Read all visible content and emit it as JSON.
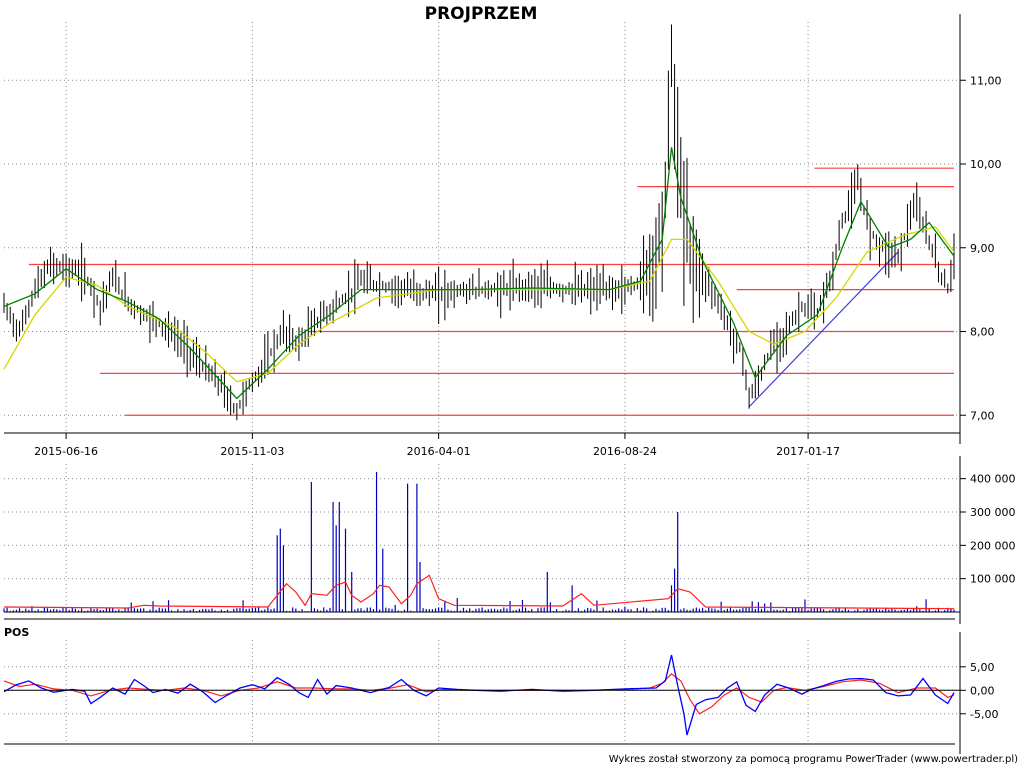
{
  "title": "PROJPRZEM",
  "footer": "Wykres został stworzony za pomocą programu PowerTrader (www.powertrader.pl)",
  "chart_data": [
    {
      "type": "candlestick",
      "name": "price",
      "x_tick_labels": [
        "2015-06-16",
        "2015-11-03",
        "2016-04-01",
        "2016-08-24",
        "2017-01-17"
      ],
      "y_tick_labels": [
        "7,00",
        "8,00",
        "9,00",
        "10,00",
        "11,00"
      ],
      "y_tick_values": [
        7,
        8,
        9,
        10,
        11
      ],
      "ylim": [
        6.8,
        11.6
      ],
      "grid": true,
      "colors": {
        "price": "#000000",
        "ma_short": "#008000",
        "ma_long": "#d6d600",
        "levels": "#ff4040",
        "trendline": "#4040d0"
      },
      "close_path": [
        [
          0,
          8.3
        ],
        [
          5,
          8.0
        ],
        [
          10,
          8.5
        ],
        [
          15,
          8.8
        ],
        [
          20,
          8.75
        ],
        [
          25,
          8.7
        ],
        [
          28,
          8.55
        ],
        [
          31,
          8.3
        ],
        [
          35,
          8.65
        ],
        [
          40,
          8.35
        ],
        [
          45,
          8.2
        ],
        [
          50,
          8.1
        ],
        [
          55,
          7.95
        ],
        [
          60,
          7.75
        ],
        [
          65,
          7.55
        ],
        [
          70,
          7.35
        ],
        [
          73,
          7.15
        ],
        [
          75,
          7.05
        ],
        [
          78,
          7.3
        ],
        [
          82,
          7.5
        ],
        [
          86,
          7.75
        ],
        [
          90,
          8.0
        ],
        [
          95,
          7.85
        ],
        [
          100,
          8.1
        ],
        [
          105,
          8.25
        ],
        [
          110,
          8.4
        ],
        [
          115,
          8.6
        ],
        [
          120,
          8.55
        ],
        [
          130,
          8.5
        ],
        [
          140,
          8.45
        ],
        [
          150,
          8.5
        ],
        [
          160,
          8.5
        ],
        [
          170,
          8.55
        ],
        [
          180,
          8.5
        ],
        [
          190,
          8.5
        ],
        [
          200,
          8.5
        ],
        [
          205,
          8.6
        ],
        [
          210,
          8.9
        ],
        [
          213,
          9.6
        ],
        [
          215,
          11.3
        ],
        [
          217,
          10.1
        ],
        [
          219,
          9.3
        ],
        [
          223,
          8.8
        ],
        [
          228,
          8.5
        ],
        [
          233,
          8.1
        ],
        [
          238,
          7.7
        ],
        [
          240,
          7.2
        ],
        [
          243,
          7.4
        ],
        [
          247,
          7.8
        ],
        [
          252,
          8.0
        ],
        [
          257,
          8.3
        ],
        [
          262,
          8.2
        ],
        [
          266,
          8.6
        ],
        [
          270,
          9.3
        ],
        [
          275,
          9.75
        ],
        [
          279,
          9.2
        ],
        [
          283,
          9.0
        ],
        [
          288,
          8.9
        ],
        [
          293,
          9.5
        ],
        [
          297,
          9.2
        ],
        [
          301,
          8.75
        ],
        [
          304,
          8.5
        ],
        [
          306,
          8.95
        ]
      ],
      "ma_short": [
        [
          0,
          8.3
        ],
        [
          10,
          8.45
        ],
        [
          20,
          8.75
        ],
        [
          30,
          8.5
        ],
        [
          40,
          8.35
        ],
        [
          50,
          8.15
        ],
        [
          60,
          7.8
        ],
        [
          70,
          7.4
        ],
        [
          75,
          7.2
        ],
        [
          85,
          7.55
        ],
        [
          95,
          7.95
        ],
        [
          105,
          8.2
        ],
        [
          115,
          8.5
        ],
        [
          130,
          8.5
        ],
        [
          150,
          8.5
        ],
        [
          170,
          8.52
        ],
        [
          195,
          8.5
        ],
        [
          205,
          8.6
        ],
        [
          212,
          9.1
        ],
        [
          215,
          10.2
        ],
        [
          218,
          9.6
        ],
        [
          225,
          8.85
        ],
        [
          235,
          8.1
        ],
        [
          242,
          7.45
        ],
        [
          252,
          7.95
        ],
        [
          262,
          8.2
        ],
        [
          270,
          9.0
        ],
        [
          276,
          9.55
        ],
        [
          285,
          9.0
        ],
        [
          292,
          9.1
        ],
        [
          298,
          9.3
        ],
        [
          306,
          8.9
        ]
      ],
      "ma_long": [
        [
          0,
          7.55
        ],
        [
          10,
          8.2
        ],
        [
          20,
          8.65
        ],
        [
          30,
          8.55
        ],
        [
          40,
          8.3
        ],
        [
          55,
          8.05
        ],
        [
          65,
          7.75
        ],
        [
          75,
          7.4
        ],
        [
          85,
          7.5
        ],
        [
          95,
          7.85
        ],
        [
          105,
          8.1
        ],
        [
          120,
          8.4
        ],
        [
          140,
          8.5
        ],
        [
          170,
          8.5
        ],
        [
          195,
          8.5
        ],
        [
          208,
          8.6
        ],
        [
          215,
          9.1
        ],
        [
          220,
          9.1
        ],
        [
          230,
          8.6
        ],
        [
          240,
          8.0
        ],
        [
          248,
          7.85
        ],
        [
          258,
          8.0
        ],
        [
          268,
          8.4
        ],
        [
          278,
          8.95
        ],
        [
          290,
          9.15
        ],
        [
          300,
          9.25
        ],
        [
          306,
          8.95
        ]
      ],
      "horizontal_levels": [
        {
          "value": 9.95,
          "from": 261,
          "to": 306
        },
        {
          "value": 9.73,
          "from": 204,
          "to": 306
        },
        {
          "value": 8.8,
          "from": 8,
          "to": 306
        },
        {
          "value": 8.5,
          "from": 236,
          "to": 306
        },
        {
          "value": 8.0,
          "from": 98,
          "to": 306
        },
        {
          "value": 7.5,
          "from": 31,
          "to": 306
        },
        {
          "value": 7.0,
          "from": 39,
          "to": 306
        }
      ],
      "trendline": [
        [
          240,
          7.1
        ],
        [
          288,
          8.95
        ]
      ]
    },
    {
      "type": "bar",
      "name": "volume",
      "y_tick_labels": [
        "100 000",
        "200 000",
        "300 000",
        "400 000"
      ],
      "y_tick_values": [
        100000,
        200000,
        300000,
        400000
      ],
      "ylim": [
        0,
        420000
      ],
      "colors": {
        "volume": "#0000c0",
        "volume_ma": "#ff2020"
      },
      "spikes": [
        [
          88,
          230000
        ],
        [
          89,
          250000
        ],
        [
          90,
          200000
        ],
        [
          99,
          390000
        ],
        [
          106,
          330000
        ],
        [
          107,
          260000
        ],
        [
          108,
          330000
        ],
        [
          110,
          250000
        ],
        [
          112,
          120000
        ],
        [
          120,
          420000
        ],
        [
          122,
          190000
        ],
        [
          130,
          385000
        ],
        [
          133,
          385000
        ],
        [
          134,
          150000
        ],
        [
          175,
          120000
        ],
        [
          183,
          80000
        ],
        [
          217,
          300000
        ],
        [
          216,
          130000
        ],
        [
          215,
          80000
        ]
      ],
      "volume_ma": [
        [
          0,
          15000
        ],
        [
          40,
          12000
        ],
        [
          45,
          20000
        ],
        [
          50,
          18000
        ],
        [
          85,
          15000
        ],
        [
          88,
          50000
        ],
        [
          91,
          85000
        ],
        [
          94,
          60000
        ],
        [
          97,
          20000
        ],
        [
          99,
          55000
        ],
        [
          104,
          50000
        ],
        [
          107,
          80000
        ],
        [
          110,
          90000
        ],
        [
          112,
          50000
        ],
        [
          115,
          30000
        ],
        [
          119,
          55000
        ],
        [
          121,
          80000
        ],
        [
          124,
          75000
        ],
        [
          128,
          25000
        ],
        [
          131,
          50000
        ],
        [
          133,
          85000
        ],
        [
          137,
          110000
        ],
        [
          140,
          40000
        ],
        [
          145,
          20000
        ],
        [
          180,
          18000
        ],
        [
          186,
          55000
        ],
        [
          190,
          20000
        ],
        [
          214,
          40000
        ],
        [
          217,
          70000
        ],
        [
          221,
          60000
        ],
        [
          226,
          15000
        ],
        [
          306,
          10000
        ]
      ]
    },
    {
      "type": "line",
      "name": "oscillator",
      "title": "POS",
      "y_tick_labels": [
        "5,00",
        "0,00",
        "-5,00"
      ],
      "y_tick_values": [
        5,
        0,
        -5
      ],
      "ylim": [
        -11,
        9
      ],
      "colors": {
        "line1": "#0000ff",
        "line2": "#ff2020",
        "zero": "#000000"
      },
      "series": [
        {
          "values": [
            [
              0,
              -0.3
            ],
            [
              4,
              1.2
            ],
            [
              8,
              2.0
            ],
            [
              12,
              0.5
            ],
            [
              16,
              -0.4
            ],
            [
              22,
              0.2
            ],
            [
              26,
              -0.2
            ],
            [
              28,
              -2.8
            ],
            [
              31,
              -1.5
            ],
            [
              35,
              0.5
            ],
            [
              39,
              -0.8
            ],
            [
              42,
              2.3
            ],
            [
              45,
              1.0
            ],
            [
              48,
              -0.5
            ],
            [
              52,
              0.2
            ],
            [
              56,
              -0.6
            ],
            [
              60,
              1.3
            ],
            [
              64,
              -0.3
            ],
            [
              68,
              -2.6
            ],
            [
              72,
              -1.0
            ],
            [
              76,
              0.5
            ],
            [
              80,
              1.2
            ],
            [
              84,
              0.3
            ],
            [
              88,
              2.7
            ],
            [
              92,
              1.2
            ],
            [
              95,
              -0.5
            ],
            [
              98,
              -1.5
            ],
            [
              101,
              2.3
            ],
            [
              104,
              -0.8
            ],
            [
              107,
              1.0
            ],
            [
              112,
              0.5
            ],
            [
              118,
              -0.5
            ],
            [
              124,
              0.6
            ],
            [
              128,
              2.3
            ],
            [
              132,
              0.0
            ],
            [
              136,
              -1.2
            ],
            [
              140,
              0.5
            ],
            [
              146,
              0.2
            ],
            [
              152,
              0.0
            ],
            [
              160,
              -0.2
            ],
            [
              170,
              0.2
            ],
            [
              180,
              -0.2
            ],
            [
              190,
              0.0
            ],
            [
              200,
              0.3
            ],
            [
              210,
              0.5
            ],
            [
              213,
              2.0
            ],
            [
              215,
              7.5
            ],
            [
              217,
              1.0
            ],
            [
              219,
              -5.0
            ],
            [
              220,
              -9.5
            ],
            [
              223,
              -3.0
            ],
            [
              226,
              -2.0
            ],
            [
              230,
              -1.5
            ],
            [
              233,
              0.5
            ],
            [
              236,
              1.8
            ],
            [
              239,
              -3.2
            ],
            [
              242,
              -4.5
            ],
            [
              245,
              -1.0
            ],
            [
              249,
              1.3
            ],
            [
              253,
              0.4
            ],
            [
              257,
              -0.8
            ],
            [
              260,
              0.2
            ],
            [
              264,
              1.0
            ],
            [
              268,
              1.9
            ],
            [
              272,
              2.4
            ],
            [
              276,
              2.5
            ],
            [
              280,
              2.2
            ],
            [
              284,
              -0.5
            ],
            [
              288,
              -1.2
            ],
            [
              292,
              -1.0
            ],
            [
              296,
              2.5
            ],
            [
              300,
              -1.0
            ],
            [
              304,
              -2.8
            ],
            [
              306,
              -0.5
            ]
          ]
        },
        {
          "values": [
            [
              0,
              2.0
            ],
            [
              5,
              0.8
            ],
            [
              10,
              1.3
            ],
            [
              16,
              0.3
            ],
            [
              22,
              0.0
            ],
            [
              28,
              -1.2
            ],
            [
              34,
              0.0
            ],
            [
              40,
              0.5
            ],
            [
              46,
              0.2
            ],
            [
              52,
              0.0
            ],
            [
              58,
              0.5
            ],
            [
              64,
              0.0
            ],
            [
              70,
              -1.2
            ],
            [
              76,
              0.0
            ],
            [
              82,
              0.5
            ],
            [
              88,
              1.8
            ],
            [
              94,
              0.5
            ],
            [
              100,
              0.5
            ],
            [
              106,
              0.3
            ],
            [
              112,
              0.3
            ],
            [
              118,
              0.0
            ],
            [
              124,
              0.4
            ],
            [
              130,
              1.2
            ],
            [
              136,
              -0.3
            ],
            [
              142,
              0.2
            ],
            [
              150,
              0.0
            ],
            [
              170,
              0.0
            ],
            [
              190,
              0.0
            ],
            [
              200,
              0.2
            ],
            [
              208,
              0.5
            ],
            [
              212,
              1.5
            ],
            [
              215,
              3.5
            ],
            [
              218,
              2.0
            ],
            [
              221,
              -2.0
            ],
            [
              224,
              -5.0
            ],
            [
              228,
              -3.5
            ],
            [
              232,
              -1.0
            ],
            [
              236,
              0.5
            ],
            [
              240,
              -1.5
            ],
            [
              244,
              -2.5
            ],
            [
              248,
              0.0
            ],
            [
              252,
              0.6
            ],
            [
              258,
              0.0
            ],
            [
              264,
              0.8
            ],
            [
              270,
              1.8
            ],
            [
              276,
              2.2
            ],
            [
              282,
              1.5
            ],
            [
              288,
              -0.5
            ],
            [
              294,
              0.5
            ],
            [
              300,
              0.5
            ],
            [
              304,
              -1.5
            ],
            [
              306,
              -1.0
            ]
          ]
        }
      ]
    }
  ]
}
